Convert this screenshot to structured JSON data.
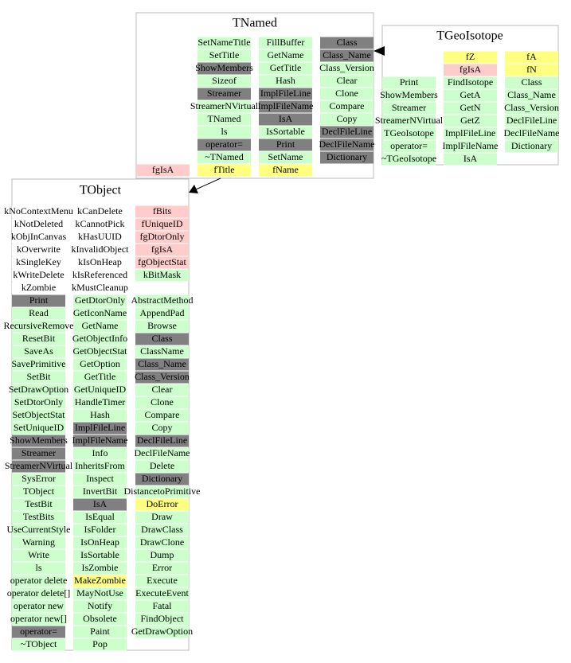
{
  "boxes": [
    {
      "title": "TNamed",
      "columns": [
        {
          "texts": [
            "fgIsA"
          ],
          "colors": [
            "#ffcccc"
          ]
        },
        {
          "texts": [
            "SetNameTitle",
            "SetTitle",
            "ShowMembers",
            "Sizeof",
            "Streamer",
            "StreamerNVirtual",
            "TNamed",
            "ls",
            "operator=",
            "~TNamed",
            "fTitle"
          ],
          "colors": [
            "#ccffcc",
            "#ccffcc",
            "#808080",
            "#ccffcc",
            "#808080",
            "#ccffcc",
            "#ccffcc",
            "#ccffcc",
            "#808080",
            "#ccffcc",
            "#ffff80"
          ]
        },
        {
          "texts": [
            "FillBuffer",
            "GetName",
            "GetTitle",
            "Hash",
            "ImplFileLine",
            "ImplFileName",
            "IsA",
            "IsSortable",
            "Print",
            "SetName",
            "fName"
          ],
          "colors": [
            "#ccffcc",
            "#ccffcc",
            "#ccffcc",
            "#ccffcc",
            "#808080",
            "#808080",
            "#808080",
            "#ccffcc",
            "#808080",
            "#ccffcc",
            "#ffff80"
          ]
        },
        {
          "texts": [
            "Class",
            "Class_Name",
            "Class_Version",
            "Clear",
            "Clone",
            "Compare",
            "Copy",
            "DeclFileLine",
            "DeclFileName",
            "Dictionary"
          ],
          "colors": [
            "#808080",
            "#808080",
            "#ccffcc",
            "#ccffcc",
            "#ccffcc",
            "#ccffcc",
            "#ccffcc",
            "#808080",
            "#808080",
            "#808080"
          ]
        }
      ]
    },
    {
      "title": "TGeoIsotope",
      "columns": [
        {
          "texts": [
            "Print",
            "ShowMembers",
            "Streamer",
            "StreamerNVirtual",
            "TGeoIsotope",
            "operator=",
            "~TGeoIsotope"
          ],
          "colors": [
            "#ccffcc",
            "#ccffcc",
            "#ccffcc",
            "#ccffcc",
            "#ccffcc",
            "#ccffcc",
            "#ccffcc"
          ]
        },
        {
          "texts": [
            "fZ",
            "fgIsA",
            "FindIsotope",
            "GetA",
            "GetN",
            "GetZ",
            "ImplFileLine",
            "ImplFileName",
            "IsA"
          ],
          "colors": [
            "#ffff80",
            "#ffcccc",
            "#ccffcc",
            "#ccffcc",
            "#ccffcc",
            "#ccffcc",
            "#ccffcc",
            "#ccffcc",
            "#ccffcc"
          ]
        },
        {
          "texts": [
            "fA",
            "fN",
            "Class",
            "Class_Name",
            "Class_Version",
            "DeclFileLine",
            "DeclFileName",
            "Dictionary"
          ],
          "colors": [
            "#ffff80",
            "#ffff80",
            "#ccffcc",
            "#ccffcc",
            "#ccffcc",
            "#ccffcc",
            "#ccffcc",
            "#ccffcc"
          ]
        }
      ]
    },
    {
      "title": "TObject",
      "columns": [
        {
          "texts": [
            "kNoContextMenu",
            "kNotDeleted",
            "kObjInCanvas",
            "kOverwrite",
            "kSingleKey",
            "kWriteDelete",
            "kZombie",
            "Print",
            "Read",
            "RecursiveRemove",
            "ResetBit",
            "SaveAs",
            "SavePrimitive",
            "SetBit",
            "SetDrawOption",
            "SetDtorOnly",
            "SetObjectStat",
            "SetUniqueID",
            "ShowMembers",
            "Streamer",
            "StreamerNVirtual",
            "SysError",
            "TObject",
            "TestBit",
            "TestBits",
            "UseCurrentStyle",
            "Warning",
            "Write",
            "ls",
            "operator delete",
            "operator delete[]",
            "operator new",
            "operator new[]",
            "operator=",
            "~TObject"
          ],
          "colors": [
            "#ffffff",
            "#ffffff",
            "#ffffff",
            "#ffffff",
            "#ffffff",
            "#ffffff",
            "#ffffff",
            "#808080",
            "#ccffcc",
            "#ccffcc",
            "#ccffcc",
            "#ccffcc",
            "#ccffcc",
            "#ccffcc",
            "#ccffcc",
            "#ccffcc",
            "#ccffcc",
            "#ccffcc",
            "#808080",
            "#808080",
            "#808080",
            "#ccffcc",
            "#ccffcc",
            "#ccffcc",
            "#ccffcc",
            "#ccffcc",
            "#ccffcc",
            "#ccffcc",
            "#ccffcc",
            "#ccffcc",
            "#ccffcc",
            "#ccffcc",
            "#ccffcc",
            "#808080",
            "#ccffcc"
          ]
        },
        {
          "texts": [
            "kCanDelete",
            "kCannotPick",
            "kHasUUID",
            "kInvalidObject",
            "kIsOnHeap",
            "kIsReferenced",
            "kMustCleanup",
            "GetDtorOnly",
            "GetIconName",
            "GetName",
            "GetObjectInfo",
            "GetObjectStat",
            "GetOption",
            "GetTitle",
            "GetUniqueID",
            "HandleTimer",
            "Hash",
            "ImplFileLine",
            "ImplFileName",
            "Info",
            "InheritsFrom",
            "Inspect",
            "InvertBit",
            "IsA",
            "IsEqual",
            "IsFolder",
            "IsOnHeap",
            "IsSortable",
            "IsZombie",
            "MakeZombie",
            "MayNotUse",
            "Notify",
            "Obsolete",
            "Paint",
            "Pop"
          ],
          "colors": [
            "#ffffff",
            "#ffffff",
            "#ffffff",
            "#ffffff",
            "#ffffff",
            "#ffffff",
            "#ffffff",
            "#ccffcc",
            "#ccffcc",
            "#ccffcc",
            "#ccffcc",
            "#ccffcc",
            "#ccffcc",
            "#ccffcc",
            "#ccffcc",
            "#ccffcc",
            "#ccffcc",
            "#808080",
            "#808080",
            "#ccffcc",
            "#ccffcc",
            "#ccffcc",
            "#ccffcc",
            "#808080",
            "#ccffcc",
            "#ccffcc",
            "#ccffcc",
            "#ccffcc",
            "#ccffcc",
            "#ffff80",
            "#ccffcc",
            "#ccffcc",
            "#ccffcc",
            "#ccffcc",
            "#ccffcc"
          ]
        },
        {
          "texts": [
            "fBits",
            "fUniqueID",
            "fgDtorOnly",
            "fgIsA",
            "fgObjectStat",
            "kBitMask"
          ],
          "colors": [
            "#ffcccc",
            "#ffcccc",
            "#ffcccc",
            "#ffcccc",
            "#ffcccc",
            "#ccffcc"
          ]
        },
        {
          "texts": [
            "AbstractMethod",
            "AppendPad",
            "Browse",
            "Class",
            "ClassName",
            "Class_Name",
            "Class_Version",
            "Clear",
            "Clone",
            "Compare",
            "Copy",
            "DeclFileLine",
            "DeclFileName",
            "Delete",
            "Dictionary",
            "DistancetoPrimitive",
            "DoError",
            "Draw",
            "DrawClass",
            "DrawClone",
            "Dump",
            "Error",
            "Execute",
            "ExecuteEvent",
            "Fatal",
            "FindObject",
            "GetDrawOption"
          ],
          "colors": [
            "#ccffcc",
            "#ccffcc",
            "#ccffcc",
            "#808080",
            "#ccffcc",
            "#808080",
            "#808080",
            "#ccffcc",
            "#ccffcc",
            "#ccffcc",
            "#ccffcc",
            "#808080",
            "#ccffcc",
            "#ccffcc",
            "#808080",
            "#ccffcc",
            "#ffff80",
            "#ccffcc",
            "#ccffcc",
            "#ccffcc",
            "#ccffcc",
            "#ccffcc",
            "#ccffcc",
            "#ccffcc",
            "#ccffcc",
            "#ccffcc",
            "#ccffcc"
          ]
        }
      ]
    }
  ]
}
